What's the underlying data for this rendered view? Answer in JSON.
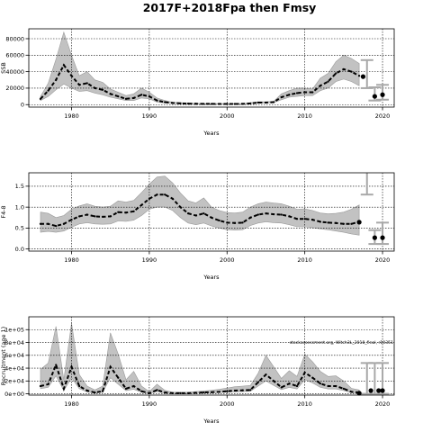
{
  "title": "2017F+2018Fpa then Fmsy",
  "chart_data": [
    {
      "type": "line",
      "ylabel": "SSB",
      "xlabel": "Years",
      "xlim": [
        1974.5,
        2021.5
      ],
      "xticks": [
        1980,
        1990,
        2000,
        2010,
        2020
      ],
      "ylim": [
        -3000,
        92000
      ],
      "yticks": [
        0,
        20000,
        40000,
        60000,
        80000
      ],
      "ytick_labels": [
        "0",
        "20000",
        "40000",
        "60000",
        "80000"
      ],
      "grid": true,
      "years": [
        1976,
        1977,
        1978,
        1979,
        1980,
        1981,
        1982,
        1983,
        1984,
        1985,
        1986,
        1987,
        1988,
        1989,
        1990,
        1991,
        1992,
        1993,
        1994,
        1995,
        1996,
        1997,
        1998,
        1999,
        2000,
        2001,
        2002,
        2003,
        2004,
        2005,
        2006,
        2007,
        2008,
        2009,
        2010,
        2011,
        2012,
        2013,
        2014,
        2015,
        2016,
        2017
      ],
      "estimate": [
        7000,
        17000,
        30000,
        48000,
        35000,
        24000,
        26000,
        20000,
        18000,
        13000,
        10000,
        7000,
        8000,
        12000,
        10000,
        5000,
        3000,
        2000,
        1500,
        1200,
        1000,
        900,
        900,
        800,
        800,
        800,
        900,
        1500,
        2500,
        2500,
        3000,
        9000,
        12000,
        14000,
        15000,
        15000,
        23000,
        28000,
        38000,
        43000,
        40000,
        35000
      ],
      "ci_lower": [
        5000,
        10000,
        18000,
        25000,
        20000,
        16000,
        17000,
        14000,
        12000,
        9000,
        7000,
        5000,
        5000,
        8000,
        7000,
        3000,
        2000,
        1500,
        1000,
        800,
        700,
        600,
        600,
        500,
        500,
        500,
        600,
        1000,
        2000,
        2000,
        2500,
        6000,
        9000,
        10000,
        11000,
        11000,
        17000,
        20000,
        28000,
        31000,
        28000,
        23000
      ],
      "ci_upper": [
        10000,
        26000,
        55000,
        88000,
        60000,
        35000,
        40000,
        30000,
        27000,
        19000,
        15000,
        11000,
        13000,
        20000,
        15000,
        8000,
        5000,
        3000,
        2500,
        2000,
        1600,
        1400,
        1400,
        1300,
        1300,
        1300,
        1400,
        2200,
        3500,
        3500,
        4000,
        13000,
        17000,
        20000,
        20000,
        19000,
        32000,
        38000,
        52000,
        60000,
        56000,
        50000
      ],
      "projection": [
        {
          "x": 2017.5,
          "y": 34000
        },
        {
          "x": 2019,
          "y": 10000
        },
        {
          "x": 2020,
          "y": 12000
        }
      ],
      "projection_whiskers": [
        {
          "x": 2018,
          "low": 20000,
          "high": 54000
        },
        {
          "x": 2019,
          "low": 5000,
          "high": 21000
        },
        {
          "x": 2020,
          "low": 6000,
          "high": 24000
        }
      ]
    },
    {
      "type": "line",
      "ylabel": "F4-8",
      "xlabel": "Years",
      "xlim": [
        1974.5,
        2021.5
      ],
      "xticks": [
        1980,
        1990,
        2000,
        2010,
        2020
      ],
      "ylim": [
        -0.05,
        1.82
      ],
      "yticks": [
        0.0,
        0.5,
        1.0,
        1.5
      ],
      "ytick_labels": [
        "0.0",
        "0.5",
        "1.0",
        "1.5"
      ],
      "grid": true,
      "years": [
        1976,
        1977,
        1978,
        1979,
        1980,
        1981,
        1982,
        1983,
        1984,
        1985,
        1986,
        1987,
        1988,
        1989,
        1990,
        1991,
        1992,
        1993,
        1994,
        1995,
        1996,
        1997,
        1998,
        1999,
        2000,
        2001,
        2002,
        2003,
        2004,
        2005,
        2006,
        2007,
        2008,
        2009,
        2010,
        2011,
        2012,
        2013,
        2014,
        2015,
        2016,
        2017
      ],
      "estimate": [
        0.6,
        0.6,
        0.55,
        0.6,
        0.7,
        0.78,
        0.82,
        0.78,
        0.77,
        0.78,
        0.88,
        0.87,
        0.9,
        1.05,
        1.2,
        1.3,
        1.3,
        1.2,
        1.0,
        0.85,
        0.8,
        0.85,
        0.75,
        0.68,
        0.63,
        0.62,
        0.63,
        0.75,
        0.82,
        0.85,
        0.83,
        0.82,
        0.78,
        0.72,
        0.72,
        0.7,
        0.65,
        0.63,
        0.62,
        0.6,
        0.6,
        0.65
      ],
      "ci_lower": [
        0.4,
        0.42,
        0.4,
        0.43,
        0.52,
        0.6,
        0.63,
        0.6,
        0.59,
        0.6,
        0.67,
        0.66,
        0.69,
        0.8,
        0.95,
        1.0,
        1.0,
        0.92,
        0.75,
        0.62,
        0.58,
        0.62,
        0.55,
        0.5,
        0.46,
        0.45,
        0.46,
        0.56,
        0.62,
        0.65,
        0.63,
        0.62,
        0.58,
        0.53,
        0.53,
        0.51,
        0.48,
        0.46,
        0.43,
        0.4,
        0.36,
        0.33
      ],
      "ci_upper": [
        0.88,
        0.85,
        0.75,
        0.8,
        0.95,
        1.03,
        1.08,
        1.02,
        1.0,
        1.02,
        1.15,
        1.12,
        1.16,
        1.35,
        1.55,
        1.72,
        1.74,
        1.58,
        1.34,
        1.15,
        1.1,
        1.22,
        1.0,
        0.92,
        0.87,
        0.86,
        0.88,
        1.0,
        1.08,
        1.12,
        1.1,
        1.08,
        1.02,
        0.95,
        0.96,
        0.92,
        0.86,
        0.84,
        0.85,
        0.88,
        0.95,
        1.05
      ],
      "projection": [
        {
          "x": 2017,
          "y": 0.64
        },
        {
          "x": 2019,
          "y": 0.27
        },
        {
          "x": 2020,
          "y": 0.27
        }
      ],
      "projection_whiskers": [
        {
          "x": 2018,
          "low": 1.3,
          "high": 1.85
        },
        {
          "x": 2019,
          "low": 0.12,
          "high": 0.45
        },
        {
          "x": 2020,
          "low": 0.12,
          "high": 0.63
        }
      ]
    },
    {
      "type": "line",
      "ylabel": "Recruitment (age 1)",
      "xlabel": "Years",
      "xlim": [
        1974.5,
        2021.5
      ],
      "xticks": [
        1980,
        1990,
        2000,
        2010,
        2020
      ],
      "ylim": [
        -2000,
        120000
      ],
      "yticks": [
        0,
        20000,
        40000,
        60000,
        80000,
        100000
      ],
      "ytick_labels": [
        "0e+00",
        "2e+04",
        "4e+04",
        "6e+04",
        "8e+04",
        "1e+05"
      ],
      "grid": true,
      "annotation": "stockassessment.org, Witch3L_2018_final, r10351",
      "years": [
        1976,
        1977,
        1978,
        1979,
        1980,
        1981,
        1982,
        1983,
        1984,
        1985,
        1986,
        1987,
        1988,
        1989,
        1990,
        1991,
        1992,
        1993,
        1994,
        1995,
        1996,
        1997,
        1998,
        1999,
        2000,
        2001,
        2002,
        2003,
        2004,
        2005,
        2006,
        2007,
        2008,
        2009,
        2010,
        2011,
        2012,
        2013,
        2014,
        2015,
        2016,
        2017
      ],
      "estimate": [
        12000,
        15000,
        45000,
        8000,
        42000,
        12000,
        5000,
        2000,
        4000,
        42000,
        25000,
        8000,
        12000,
        4000,
        1000,
        6000,
        2000,
        1000,
        1000,
        1000,
        1500,
        2000,
        2500,
        3000,
        4000,
        5000,
        5500,
        6000,
        18000,
        30000,
        20000,
        10000,
        16000,
        12000,
        33000,
        25000,
        16000,
        12000,
        12000,
        8000,
        3000,
        2000
      ],
      "ci_lower": [
        8000,
        10000,
        28000,
        5000,
        25000,
        8000,
        3000,
        1000,
        2500,
        25000,
        15000,
        5000,
        7000,
        2500,
        500,
        3500,
        1000,
        500,
        500,
        500,
        1000,
        1300,
        1600,
        2000,
        2600,
        3200,
        3500,
        4000,
        12000,
        20000,
        13000,
        6500,
        10000,
        7500,
        22000,
        17000,
        10000,
        7500,
        7500,
        5000,
        1800,
        1200
      ],
      "ci_upper": [
        38000,
        48000,
        105000,
        22000,
        110000,
        30000,
        12000,
        6000,
        12000,
        95000,
        62000,
        22000,
        35000,
        12000,
        3500,
        15000,
        5500,
        2500,
        2500,
        2500,
        3500,
        4500,
        5500,
        7000,
        9000,
        11000,
        12000,
        13000,
        32000,
        60000,
        42000,
        24000,
        36000,
        27000,
        62000,
        50000,
        35000,
        27000,
        28000,
        20000,
        8500,
        6000
      ],
      "projection": [
        {
          "x": 2017,
          "y": 1000
        },
        {
          "x": 2018.5,
          "y": 5000
        },
        {
          "x": 2019.5,
          "y": 5000
        },
        {
          "x": 2020,
          "y": 5000
        }
      ],
      "projection_whiskers": [
        {
          "x": 2018,
          "low": 0,
          "high": 48000
        },
        {
          "x": 2019,
          "low": 0,
          "high": 48000
        },
        {
          "x": 2020,
          "low": 0,
          "high": 48000
        }
      ]
    }
  ]
}
